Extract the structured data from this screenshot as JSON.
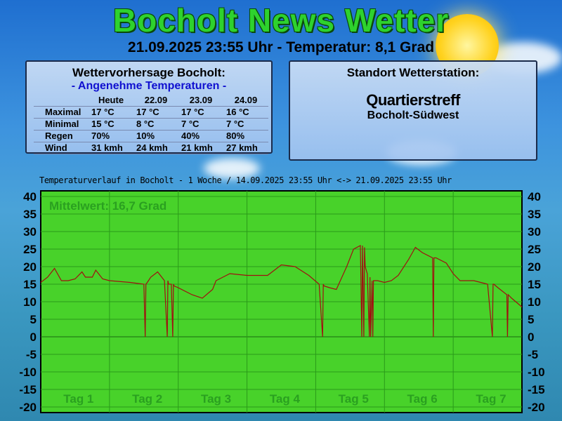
{
  "header": {
    "title": "Bocholt News Wetter",
    "subtitle": "21.09.2025 23:55 Uhr - Temperatur: 8,1 Grad",
    "sun_icon": "sun-icon"
  },
  "forecast": {
    "title": "Wettervorhersage Bocholt:",
    "tagline": "- Angenehme Temperaturen -",
    "columns": [
      "",
      "Heute",
      "22.09",
      "23.09",
      "24.09"
    ],
    "rows": [
      [
        "Maximal",
        "17 °C",
        "17 °C",
        "17 °C",
        "16 °C"
      ],
      [
        "Minimal",
        "15 °C",
        "8 °C",
        "7 °C",
        "7 °C"
      ],
      [
        "Regen",
        "70%",
        "10%",
        "40%",
        "80%"
      ],
      [
        "Wind",
        "31 kmh",
        "24 kmh",
        "21 kmh",
        "27 kmh"
      ]
    ]
  },
  "station": {
    "heading": "Standort Wetterstation:",
    "name": "Quartierstreff",
    "location": "Bocholt-Südwest"
  },
  "chart_data": {
    "type": "line",
    "title": "Temperaturverlauf in Bocholt - 1 Woche / 14.09.2025 23:55 Uhr <-> 21.09.2025 23:55 Uhr",
    "annotation": "Mittelwert: 16,7 Grad",
    "ylim": [
      -20,
      40
    ],
    "xlim": [
      0,
      7
    ],
    "grid": true,
    "yticks": [
      40,
      35,
      30,
      25,
      20,
      15,
      10,
      5,
      0,
      -5,
      -10,
      -15,
      -20
    ],
    "xtick_labels": [
      "Tag 1",
      "Tag 2",
      "Tag 3",
      "Tag 4",
      "Tag 5",
      "Tag 6",
      "Tag 7"
    ],
    "colors": {
      "plot_bg": "#48d22a",
      "line": "#a01010",
      "grid": "#2a9a1a"
    },
    "series": [
      {
        "x": [
          0,
          0.1,
          0.2,
          0.3,
          0.4,
          0.5,
          0.6,
          0.65,
          0.75,
          0.8,
          0.9,
          1.0,
          1.3,
          1.5,
          1.52,
          1.53,
          1.55,
          1.6,
          1.7,
          1.8,
          1.84,
          1.85,
          1.86,
          1.9,
          1.92,
          1.93,
          1.94,
          2.0,
          2.2,
          2.35,
          2.5,
          2.55,
          2.75,
          3.0,
          3.3,
          3.5,
          3.7,
          3.9,
          4.05,
          4.1,
          4.11,
          4.12,
          4.2,
          4.3,
          4.45,
          4.55,
          4.65,
          4.67,
          4.68,
          4.7,
          4.71,
          4.72,
          4.75,
          4.78,
          4.79,
          4.8,
          4.82,
          4.83,
          4.84,
          4.9,
          5.0,
          5.1,
          5.2,
          5.35,
          5.45,
          5.55,
          5.7,
          5.71,
          5.72,
          5.75,
          5.9,
          6.0,
          6.1,
          6.3,
          6.5,
          6.57,
          6.58,
          6.59,
          6.65,
          6.78,
          6.79,
          6.8,
          6.85,
          7.0
        ],
        "y": [
          15.5,
          17,
          19.5,
          16,
          16,
          16.5,
          18.5,
          17,
          17,
          19,
          16.5,
          16,
          15.5,
          15,
          0,
          15,
          15.5,
          17,
          18.5,
          16,
          0,
          16,
          15,
          15,
          0,
          15,
          14.5,
          14,
          12,
          11,
          13.5,
          16,
          18,
          17.5,
          17.5,
          20.5,
          20,
          17.5,
          15,
          0,
          15,
          14.5,
          14,
          13.5,
          20,
          25,
          26,
          0,
          26,
          0,
          25.5,
          20,
          18,
          0,
          17,
          0,
          16,
          0,
          16,
          16,
          15.5,
          16,
          17.5,
          22,
          25.5,
          24,
          22.5,
          0,
          22.5,
          22.5,
          21,
          18,
          16,
          16,
          15,
          0,
          15,
          15,
          14,
          12,
          0,
          12,
          11,
          8.5
        ]
      }
    ]
  }
}
